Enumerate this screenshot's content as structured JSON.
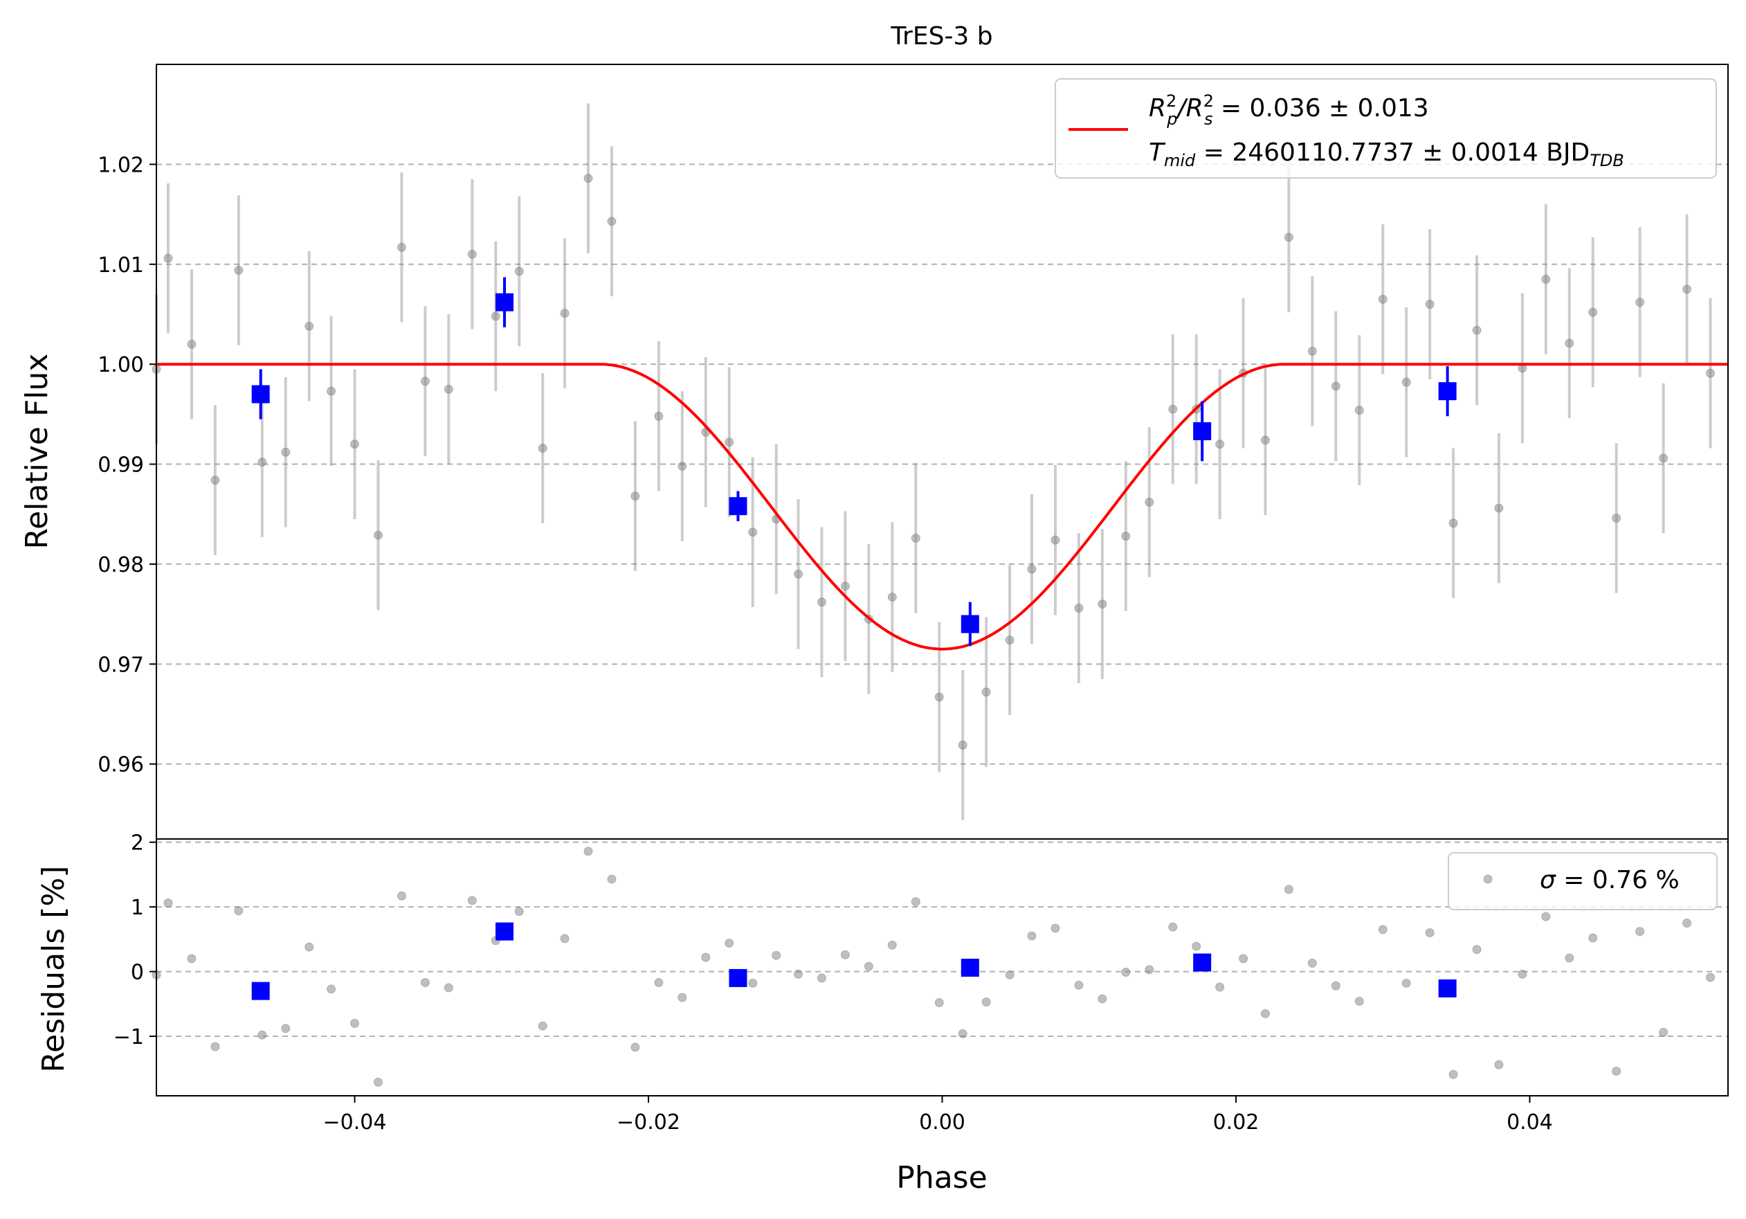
{
  "chart_data": [
    {
      "type": "scatter",
      "panel": "flux",
      "title": "TrES-3 b",
      "xlabel": "",
      "ylabel": "Relative Flux",
      "xlim": [
        -0.0535,
        0.0535
      ],
      "ylim": [
        0.9525,
        1.03
      ],
      "yticks": [
        0.96,
        0.97,
        0.98,
        0.99,
        1.0,
        1.01,
        1.02
      ],
      "ytick_labels": [
        "0.96",
        "0.97",
        "0.98",
        "0.99",
        "1.00",
        "1.01",
        "1.02"
      ],
      "grid": "horizontal dashed",
      "legend_position": "top-right",
      "legend": {
        "rp_line1_prefix": "R",
        "rp_sup": "2",
        "rp_sub": "p",
        "rp_slash": "/R",
        "rs_sup": "2",
        "rs_sub": "s",
        "rp_value": " = 0.036 ± 0.013",
        "tmid_main": "T",
        "tmid_sub": "mid",
        "tmid_value": " = 2460110.7737 ± 0.0014 BJD",
        "tmid_unit_sub": "TDB"
      },
      "model": {
        "name": "transit model",
        "color": "#ff0000",
        "baseline": 1.0,
        "min_flux": 0.9715,
        "t1": -0.0233,
        "t4": 0.0233
      },
      "series": [
        {
          "name": "data",
          "color": "#808080",
          "x": [
            -0.0535,
            -0.0527,
            -0.0511,
            -0.0495,
            -0.0479,
            -0.0463,
            -0.0447,
            -0.0431,
            -0.0416,
            -0.04,
            -0.0384,
            -0.0368,
            -0.0352,
            -0.0336,
            -0.032,
            -0.0304,
            -0.0288,
            -0.0272,
            -0.0257,
            -0.0241,
            -0.0225,
            -0.0209,
            -0.0193,
            -0.0177,
            -0.0161,
            -0.0145,
            -0.0129,
            -0.0113,
            -0.0098,
            -0.0082,
            -0.0066,
            -0.005,
            -0.0034,
            -0.0018,
            -0.0002,
            0.0014,
            0.003,
            0.0046,
            0.0061,
            0.0077,
            0.0093,
            0.0109,
            0.0125,
            0.0141,
            0.0157,
            0.0173,
            0.0189,
            0.0205,
            0.022,
            0.0236,
            0.0252,
            0.0268,
            0.0284,
            0.03,
            0.0316,
            0.0332,
            0.0348,
            0.0364,
            0.0379,
            0.0395,
            0.0411,
            0.0427,
            0.0443,
            0.0459,
            0.0475,
            0.0491,
            0.0507,
            0.0523,
            0.0539
          ],
          "y": [
            0.9995,
            1.0106,
            1.002,
            0.9884,
            1.0094,
            0.9902,
            0.9912,
            1.0038,
            0.9973,
            0.992,
            0.9829,
            1.0117,
            0.9983,
            0.9975,
            1.011,
            1.0048,
            1.0093,
            0.9916,
            1.0051,
            1.0186,
            1.0143,
            0.9868,
            0.9948,
            0.9898,
            0.9932,
            0.9922,
            0.9832,
            0.9845,
            0.979,
            0.9762,
            0.9778,
            0.9745,
            0.9767,
            0.9826,
            0.9667,
            0.9619,
            0.9672,
            0.9724,
            0.9795,
            0.9824,
            0.9756,
            0.976,
            0.9828,
            0.9862,
            0.9955,
            0.9955,
            0.992,
            0.9991,
            0.9924,
            1.0127,
            1.0013,
            0.9978,
            0.9954,
            1.0065,
            0.9982,
            1.006,
            0.9841,
            1.0034,
            0.9856,
            0.9996,
            1.0085,
            1.0021,
            1.0052,
            0.9846,
            1.0062,
            0.9906,
            1.0075,
            0.9991,
            0.9995
          ],
          "yerr": 0.0075
        },
        {
          "name": "binned",
          "color": "#0000ff",
          "x": [
            -0.0464,
            -0.0298,
            -0.0139,
            0.0019,
            0.0177,
            0.0344
          ],
          "y": [
            0.997,
            1.0062,
            0.9858,
            0.974,
            0.9933,
            0.9973
          ],
          "yerr": [
            0.0025,
            0.0025,
            0.0015,
            0.0022,
            0.003,
            0.0025
          ]
        }
      ]
    },
    {
      "type": "scatter",
      "panel": "residuals",
      "xlabel": "Phase",
      "ylabel": "Residuals [%]",
      "xlim": [
        -0.0535,
        0.0535
      ],
      "ylim": [
        -1.92,
        2.05
      ],
      "xticks": [
        -0.04,
        -0.02,
        0.0,
        0.02,
        0.04
      ],
      "xtick_labels": [
        "−0.04",
        "−0.02",
        "0.00",
        "0.02",
        "0.04"
      ],
      "yticks": [
        -1,
        0,
        1,
        2
      ],
      "ytick_labels": [
        "−1",
        "0",
        "1",
        "2"
      ],
      "grid": "horizontal dashed",
      "legend_position": "top-right",
      "legend": {
        "sigma_symbol": "σ",
        "sigma_value": " = 0.76 %"
      },
      "series": [
        {
          "name": "residuals",
          "color": "#808080",
          "x": [
            -0.0535,
            -0.0527,
            -0.0511,
            -0.0495,
            -0.0479,
            -0.0463,
            -0.0447,
            -0.0431,
            -0.0416,
            -0.04,
            -0.0384,
            -0.0368,
            -0.0352,
            -0.0336,
            -0.032,
            -0.0304,
            -0.0288,
            -0.0272,
            -0.0257,
            -0.0241,
            -0.0225,
            -0.0209,
            -0.0193,
            -0.0177,
            -0.0161,
            -0.0145,
            -0.0129,
            -0.0113,
            -0.0098,
            -0.0082,
            -0.0066,
            -0.005,
            -0.0034,
            -0.0018,
            -0.0002,
            0.0014,
            0.003,
            0.0046,
            0.0061,
            0.0077,
            0.0093,
            0.0109,
            0.0125,
            0.0141,
            0.0157,
            0.0173,
            0.0189,
            0.0205,
            0.022,
            0.0236,
            0.0252,
            0.0268,
            0.0284,
            0.03,
            0.0316,
            0.0332,
            0.0348,
            0.0364,
            0.0379,
            0.0395,
            0.0411,
            0.0427,
            0.0443,
            0.0459,
            0.0475,
            0.0491,
            0.0507,
            0.0523,
            0.0539
          ],
          "y": [
            -0.05,
            1.06,
            0.2,
            -1.16,
            0.94,
            -0.98,
            -0.88,
            0.38,
            -0.27,
            -0.8,
            -1.71,
            1.17,
            -0.17,
            -0.25,
            1.1,
            0.48,
            0.93,
            -0.84,
            0.51,
            1.86,
            1.43,
            -1.17,
            -0.17,
            -0.4,
            0.22,
            0.44,
            -0.18,
            0.25,
            -0.04,
            -0.1,
            0.26,
            0.08,
            0.41,
            1.08,
            -0.48,
            -0.96,
            -0.47,
            -0.05,
            0.55,
            0.67,
            -0.21,
            -0.42,
            -0.01,
            0.03,
            0.69,
            0.39,
            -0.24,
            0.2,
            -0.65,
            1.27,
            0.13,
            -0.22,
            -0.46,
            0.65,
            -0.18,
            0.6,
            -1.59,
            0.34,
            -1.44,
            -0.04,
            0.85,
            0.21,
            0.52,
            -1.54,
            0.62,
            -0.94,
            0.75,
            -0.09,
            -0.05
          ]
        },
        {
          "name": "binned",
          "color": "#0000ff",
          "x": [
            -0.0464,
            -0.0298,
            -0.0139,
            0.0019,
            0.0177,
            0.0344
          ],
          "y": [
            -0.3,
            0.62,
            -0.1,
            0.06,
            0.14,
            -0.26
          ]
        }
      ]
    }
  ]
}
